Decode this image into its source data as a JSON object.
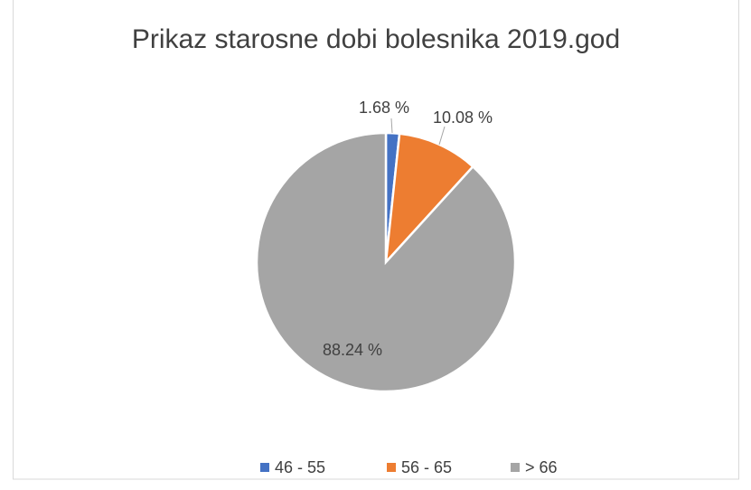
{
  "chart_data": {
    "type": "pie",
    "title": "Prikaz starosne dobi bolesnika 2019.god",
    "categories": [
      "46 - 55",
      "56 - 65",
      "> 66"
    ],
    "values": [
      1.68,
      10.08,
      88.24
    ],
    "value_labels": [
      "1.68 %",
      "10.08 %",
      "88.24 %"
    ],
    "colors": [
      "#4472c4",
      "#ed7d31",
      "#a5a5a5"
    ],
    "legend": "bottom"
  }
}
